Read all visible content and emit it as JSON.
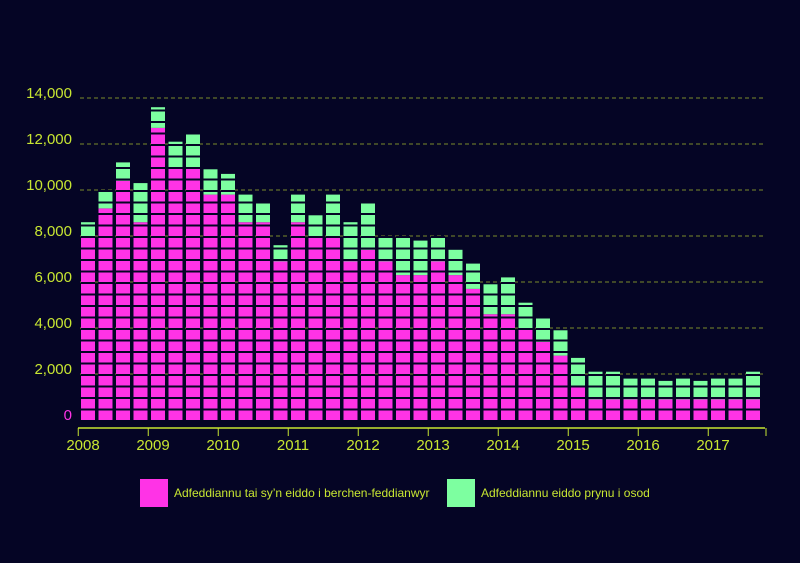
{
  "chart_data": {
    "type": "stacked-bar",
    "categories": [
      "2008",
      null,
      null,
      null,
      "2009",
      null,
      null,
      null,
      "2010",
      null,
      null,
      null,
      "2011",
      null,
      null,
      null,
      "2012",
      null,
      null,
      null,
      "2013",
      null,
      null,
      null,
      "2014",
      null,
      null,
      null,
      "2015",
      null,
      null,
      null,
      "2016",
      null,
      null,
      null,
      "2017",
      null,
      null
    ],
    "series": [
      {
        "name": "Adfeddiannu tai sy’n eiddo i berchen-feddianwyr",
        "color": "#ff33e6",
        "values": [
          8000,
          9200,
          10400,
          8600,
          12700,
          11000,
          11000,
          9800,
          9800,
          8600,
          8600,
          6900,
          8600,
          8000,
          8000,
          6900,
          7400,
          6900,
          6300,
          6300,
          6900,
          6300,
          5700,
          4600,
          4600,
          4000,
          3400,
          2800,
          1500,
          900,
          900,
          900,
          900,
          900,
          900,
          900,
          900,
          900,
          900
        ]
      },
      {
        "name": "Adfeddiannu eiddo prynu i osod",
        "color": "#7dffa0",
        "values": [
          600,
          800,
          800,
          1700,
          900,
          1100,
          1500,
          1100,
          900,
          1200,
          900,
          700,
          1200,
          900,
          1800,
          1700,
          2100,
          1100,
          1700,
          1500,
          1100,
          1100,
          1100,
          1300,
          1600,
          1100,
          1100,
          1100,
          1200,
          1200,
          1200,
          900,
          900,
          800,
          900,
          800,
          900,
          900,
          1200
        ]
      }
    ],
    "ylim": [
      0,
      14000
    ],
    "yticks": [
      0,
      {
        "value": 2000,
        "label": "2,000"
      },
      {
        "value": 4000,
        "label": "4,000"
      },
      {
        "value": 6000,
        "label": "6,000"
      },
      {
        "value": 8000,
        "label": "8,000"
      },
      {
        "value": 10000,
        "label": "10,000"
      },
      {
        "value": 12000,
        "label": "12,000"
      },
      {
        "value": 14000,
        "label": "14,000"
      }
    ],
    "grid": true
  }
}
